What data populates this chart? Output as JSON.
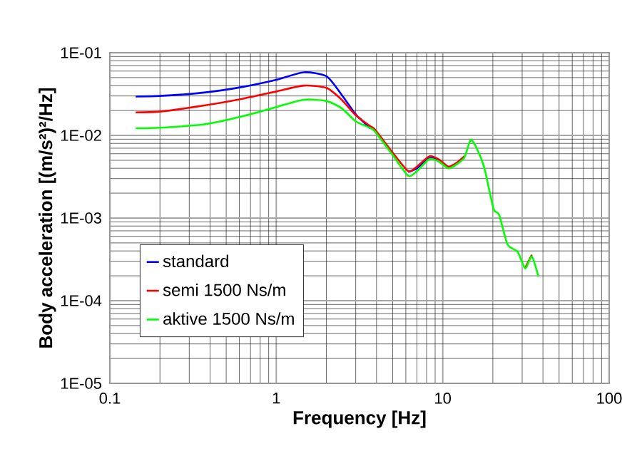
{
  "chart_data": {
    "type": "line",
    "xlabel": "Frequency [Hz]",
    "ylabel": "Body acceleration [(m/s²)²/Hz]",
    "log": "xy",
    "grid": true,
    "legend": "bottom left",
    "line_style": "solid",
    "xlim": [
      0.1,
      100
    ],
    "ylim": [
      1e-05,
      0.1
    ],
    "xticks": [
      0.1,
      1,
      10,
      100
    ],
    "yticks": [
      {
        "value": 1e-05,
        "label": "1E-05"
      },
      {
        "value": 0.0001,
        "label": "1E-04"
      },
      {
        "value": 0.001,
        "label": "1E-03"
      },
      {
        "value": 0.01,
        "label": "1E-02"
      },
      {
        "value": 0.1,
        "label": "1E-01"
      }
    ],
    "x": [
      0.143,
      0.2,
      0.369,
      0.624,
      1.0,
      1.46,
      2.0,
      2.47,
      3.0,
      3.66,
      3.91,
      5.0,
      6.2,
      7.0,
      8.33,
      9.5,
      10.8,
      12.0,
      13.5,
      14.7,
      16.0,
      17.8,
      20.2,
      21.8,
      24.5,
      28.2,
      31.3,
      34.3,
      37.6
    ],
    "series": [
      {
        "name": "standard",
        "color": "#0000ff",
        "values": [
          0.0296,
          0.03,
          0.033,
          0.0385,
          0.047,
          0.058,
          0.052,
          0.031,
          0.018,
          0.0122,
          null,
          null,
          0.0036,
          0.004,
          0.0054,
          0.005,
          null,
          null,
          null,
          null,
          null,
          null,
          null,
          null,
          null,
          null,
          null,
          null,
          null
        ]
      },
      {
        "name": "semi 1500 Ns/m",
        "color": "#ff0000",
        "values": [
          0.019,
          0.0194,
          0.023,
          0.0277,
          0.034,
          0.04,
          0.0376,
          0.027,
          0.0175,
          0.013,
          0.0118,
          0.0062,
          0.0037,
          0.0042,
          0.0056,
          0.0051,
          0.0042,
          0.0046,
          0.0056,
          null,
          null,
          null,
          null,
          null,
          null,
          null,
          0.00025,
          0.00036,
          null
        ]
      },
      {
        "name": "aktive 1500 Ns/m",
        "color": "#00ff00",
        "values": [
          0.0122,
          0.0124,
          0.0136,
          0.017,
          0.022,
          0.027,
          0.026,
          0.0213,
          0.0148,
          0.0123,
          0.0112,
          0.0058,
          0.00325,
          0.0037,
          0.0052,
          0.0048,
          0.004,
          0.0044,
          0.0054,
          0.0088,
          0.007,
          0.004,
          0.00129,
          0.0011,
          0.00048,
          0.00039,
          0.000246,
          0.000342,
          0.000195
        ]
      }
    ]
  }
}
